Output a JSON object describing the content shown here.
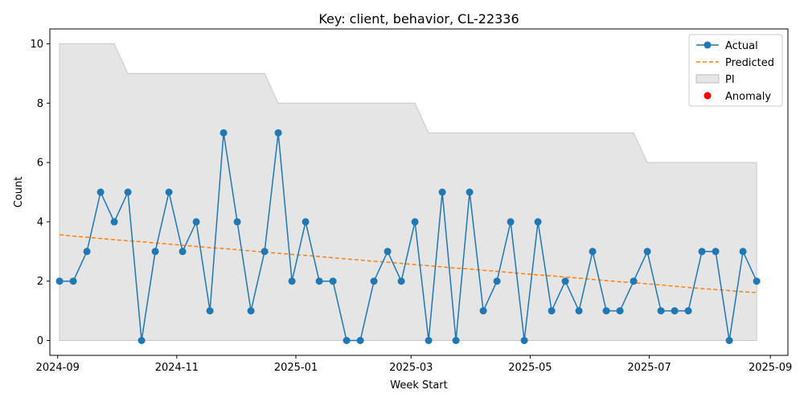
{
  "chart_data": {
    "type": "line",
    "title": "Key: client, behavior, CL-22336",
    "xlabel": "Week Start",
    "ylabel": "Count",
    "x_type": "date",
    "xlim": [
      "2024-08-28",
      "2025-09-10"
    ],
    "ylim": [
      -0.5,
      10.5
    ],
    "x_ticks": [
      {
        "date": "2024-09-01",
        "label": "2024-09"
      },
      {
        "date": "2024-11-01",
        "label": "2024-11"
      },
      {
        "date": "2025-01-01",
        "label": "2025-01"
      },
      {
        "date": "2025-03-01",
        "label": "2025-03"
      },
      {
        "date": "2025-05-01",
        "label": "2025-05"
      },
      {
        "date": "2025-07-01",
        "label": "2025-07"
      },
      {
        "date": "2025-09-01",
        "label": "2025-09"
      }
    ],
    "y_ticks": [
      0,
      2,
      4,
      6,
      8,
      10
    ],
    "grid": false,
    "legend_position": "top-right",
    "x": [
      "2024-09-02",
      "2024-09-09",
      "2024-09-16",
      "2024-09-23",
      "2024-09-30",
      "2024-10-07",
      "2024-10-14",
      "2024-10-21",
      "2024-10-28",
      "2024-11-04",
      "2024-11-11",
      "2024-11-18",
      "2024-11-25",
      "2024-12-02",
      "2024-12-09",
      "2024-12-16",
      "2024-12-23",
      "2024-12-30",
      "2025-01-06",
      "2025-01-13",
      "2025-01-20",
      "2025-01-27",
      "2025-02-03",
      "2025-02-10",
      "2025-02-17",
      "2025-02-24",
      "2025-03-03",
      "2025-03-10",
      "2025-03-17",
      "2025-03-24",
      "2025-03-31",
      "2025-04-07",
      "2025-04-14",
      "2025-04-21",
      "2025-04-28",
      "2025-05-05",
      "2025-05-12",
      "2025-05-19",
      "2025-05-26",
      "2025-06-02",
      "2025-06-09",
      "2025-06-16",
      "2025-06-23",
      "2025-06-30",
      "2025-07-07",
      "2025-07-14",
      "2025-07-21",
      "2025-07-28",
      "2025-08-04",
      "2025-08-11",
      "2025-08-18",
      "2025-08-25"
    ],
    "series": [
      {
        "name": "Actual",
        "color": "#1f77b4",
        "style": "solid-with-markers",
        "values": [
          2,
          2,
          3,
          5,
          4,
          5,
          0,
          3,
          5,
          3,
          4,
          1,
          7,
          4,
          1,
          3,
          7,
          2,
          4,
          2,
          2,
          0,
          0,
          2,
          3,
          2,
          4,
          0,
          5,
          0,
          5,
          1,
          2,
          4,
          0,
          4,
          1,
          2,
          1,
          3,
          1,
          1,
          2,
          3,
          1,
          1,
          1,
          3,
          3,
          0,
          3,
          2
        ]
      },
      {
        "name": "Predicted",
        "color": "#ff7f0e",
        "style": "dashed",
        "values": [
          3.56,
          3.52,
          3.48,
          3.44,
          3.4,
          3.36,
          3.33,
          3.29,
          3.25,
          3.21,
          3.17,
          3.13,
          3.1,
          3.06,
          3.02,
          2.98,
          2.94,
          2.9,
          2.87,
          2.83,
          2.79,
          2.75,
          2.71,
          2.67,
          2.64,
          2.6,
          2.56,
          2.52,
          2.48,
          2.44,
          2.41,
          2.37,
          2.33,
          2.29,
          2.25,
          2.21,
          2.18,
          2.14,
          2.1,
          2.06,
          2.02,
          1.98,
          1.95,
          1.91,
          1.87,
          1.83,
          1.79,
          1.75,
          1.72,
          1.68,
          1.64,
          1.62
        ]
      }
    ],
    "interval": {
      "name": "PI",
      "color": "#d3d3d3",
      "lower": [
        0,
        0,
        0,
        0,
        0,
        0,
        0,
        0,
        0,
        0,
        0,
        0,
        0,
        0,
        0,
        0,
        0,
        0,
        0,
        0,
        0,
        0,
        0,
        0,
        0,
        0,
        0,
        0,
        0,
        0,
        0,
        0,
        0,
        0,
        0,
        0,
        0,
        0,
        0,
        0,
        0,
        0,
        0,
        0,
        0,
        0,
        0,
        0,
        0,
        0,
        0,
        0
      ],
      "upper": [
        10,
        10,
        10,
        10,
        10,
        9,
        9,
        9,
        9,
        9,
        9,
        9,
        9,
        9,
        9,
        9,
        8,
        8,
        8,
        8,
        8,
        8,
        8,
        8,
        8,
        8,
        8,
        7,
        7,
        7,
        7,
        7,
        7,
        7,
        7,
        7,
        7,
        7,
        7,
        7,
        7,
        7,
        7,
        6,
        6,
        6,
        6,
        6,
        6,
        6,
        6,
        6
      ]
    },
    "anomalies": {
      "name": "Anomaly",
      "color": "#ff0000",
      "points": []
    }
  }
}
